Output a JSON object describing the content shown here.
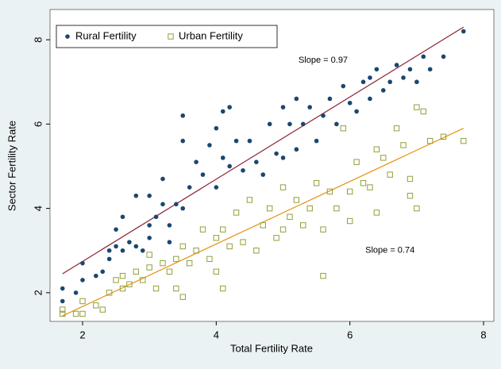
{
  "chart_data": {
    "type": "scatter",
    "xlabel": "Total Fertility Rate",
    "ylabel": "Sector Fertility Rate",
    "xlim": [
      1.513,
      8.154
    ],
    "ylim": [
      1.32,
      8.717
    ],
    "xticks": [
      2,
      4,
      6,
      8
    ],
    "yticks": [
      2,
      4,
      6,
      8
    ],
    "legend": "top-left",
    "series": [
      {
        "name": "Rural Fertility",
        "color": "#1a476f",
        "marker": "circle",
        "x": [
          1.7,
          1.7,
          1.9,
          2.0,
          2.0,
          2.2,
          2.3,
          2.4,
          2.4,
          2.5,
          2.5,
          2.6,
          2.6,
          2.7,
          2.8,
          2.8,
          2.9,
          3.0,
          3.0,
          3.0,
          3.1,
          3.2,
          3.2,
          3.3,
          3.3,
          3.4,
          3.5,
          3.5,
          3.5,
          3.6,
          3.7,
          3.8,
          3.9,
          4.0,
          4.0,
          4.1,
          4.1,
          4.2,
          4.2,
          4.3,
          4.4,
          4.5,
          4.6,
          4.7,
          4.8,
          4.9,
          5.0,
          5.0,
          5.1,
          5.2,
          5.2,
          5.3,
          5.4,
          5.5,
          5.6,
          5.7,
          5.8,
          5.9,
          6.0,
          6.1,
          6.2,
          6.3,
          6.3,
          6.4,
          6.5,
          6.6,
          6.7,
          6.8,
          6.9,
          7.0,
          7.1,
          7.2,
          7.4,
          7.7
        ],
        "values": [
          1.8,
          2.1,
          2.0,
          2.7,
          2.3,
          2.4,
          2.5,
          2.8,
          3.0,
          3.5,
          3.1,
          3.8,
          3.0,
          3.2,
          4.3,
          3.1,
          3.0,
          3.3,
          4.3,
          3.6,
          3.8,
          4.1,
          4.7,
          3.6,
          3.2,
          4.1,
          5.6,
          6.2,
          4.0,
          4.5,
          5.1,
          4.8,
          5.5,
          4.5,
          5.9,
          6.3,
          5.2,
          6.4,
          5.0,
          5.6,
          4.9,
          5.6,
          5.1,
          4.8,
          6.0,
          5.3,
          6.4,
          5.2,
          6.0,
          5.4,
          6.6,
          6.0,
          6.4,
          5.6,
          6.2,
          6.6,
          6.0,
          6.9,
          6.5,
          6.3,
          7.0,
          6.6,
          7.1,
          7.3,
          6.8,
          7.0,
          7.4,
          7.1,
          7.3,
          7.0,
          7.6,
          7.3,
          7.6,
          8.2
        ]
      },
      {
        "name": "Urban Fertility",
        "color": "#90a038",
        "marker": "hollow-square",
        "x": [
          1.7,
          1.7,
          1.9,
          2.0,
          2.0,
          2.2,
          2.3,
          2.4,
          2.5,
          2.6,
          2.6,
          2.7,
          2.8,
          2.9,
          3.0,
          3.0,
          3.1,
          3.2,
          3.3,
          3.4,
          3.4,
          3.5,
          3.5,
          3.6,
          3.7,
          3.8,
          3.9,
          4.0,
          4.0,
          4.1,
          4.1,
          4.2,
          4.3,
          4.4,
          4.5,
          4.6,
          4.7,
          4.8,
          4.9,
          5.0,
          5.0,
          5.1,
          5.2,
          5.3,
          5.4,
          5.5,
          5.6,
          5.6,
          5.7,
          5.8,
          5.9,
          6.0,
          6.0,
          6.1,
          6.2,
          6.3,
          6.4,
          6.4,
          6.5,
          6.6,
          6.7,
          6.8,
          6.9,
          6.9,
          7.0,
          7.0,
          7.1,
          7.2,
          7.4,
          7.7
        ],
        "values": [
          1.5,
          1.6,
          1.5,
          1.8,
          1.5,
          1.7,
          1.6,
          2.0,
          2.3,
          2.1,
          2.4,
          2.2,
          2.5,
          2.3,
          2.6,
          2.9,
          2.1,
          2.7,
          2.5,
          2.8,
          2.1,
          1.9,
          3.1,
          2.7,
          3.0,
          3.5,
          2.8,
          3.3,
          2.5,
          3.5,
          2.1,
          3.1,
          3.9,
          3.2,
          4.2,
          3.0,
          3.6,
          4.0,
          3.3,
          4.5,
          3.5,
          3.8,
          4.2,
          3.6,
          4.0,
          4.6,
          3.5,
          2.4,
          4.4,
          4.0,
          5.9,
          4.4,
          3.7,
          5.1,
          4.6,
          4.5,
          5.4,
          3.9,
          5.2,
          4.8,
          5.9,
          5.5,
          4.7,
          4.3,
          6.4,
          4.0,
          6.3,
          5.6,
          5.7,
          5.6
        ]
      }
    ],
    "fits": [
      {
        "color": "#8b2232",
        "x": [
          1.7,
          7.7
        ],
        "y": [
          2.45,
          8.3
        ]
      },
      {
        "color": "#e8900a",
        "x": [
          1.7,
          7.7
        ],
        "y": [
          1.45,
          5.9
        ]
      }
    ],
    "annotations": [
      {
        "text": "Slope = 0.97",
        "x": 5.6,
        "y": 7.51
      },
      {
        "text": "Slope = 0.74",
        "x": 6.6,
        "y": 3.0
      }
    ]
  }
}
